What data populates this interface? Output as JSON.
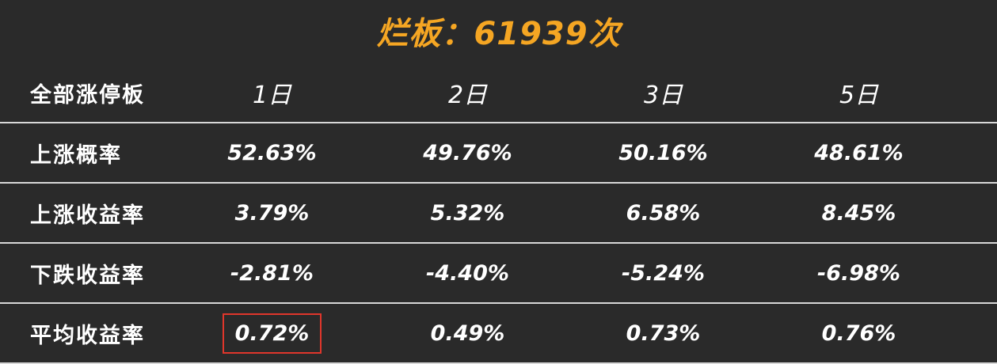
{
  "title": "烂板：61939次",
  "table": {
    "header": {
      "label": "全部涨停板",
      "columns": [
        "1日",
        "2日",
        "3日",
        "5日"
      ]
    },
    "rows": [
      {
        "label": "上涨概率",
        "values": [
          "52.63%",
          "49.76%",
          "50.16%",
          "48.61%"
        ]
      },
      {
        "label": "上涨收益率",
        "values": [
          "3.79%",
          "5.32%",
          "6.58%",
          "8.45%"
        ]
      },
      {
        "label": "下跌收益率",
        "values": [
          "-2.81%",
          "-4.40%",
          "-5.24%",
          "-6.98%"
        ]
      },
      {
        "label": "平均收益率",
        "values": [
          "0.72%",
          "0.49%",
          "0.73%",
          "0.76%"
        ]
      }
    ]
  },
  "colors": {
    "background": "#2a2a2a",
    "title": "#f5a623",
    "text": "#ffffff",
    "highlight_border": "#e0362b"
  }
}
